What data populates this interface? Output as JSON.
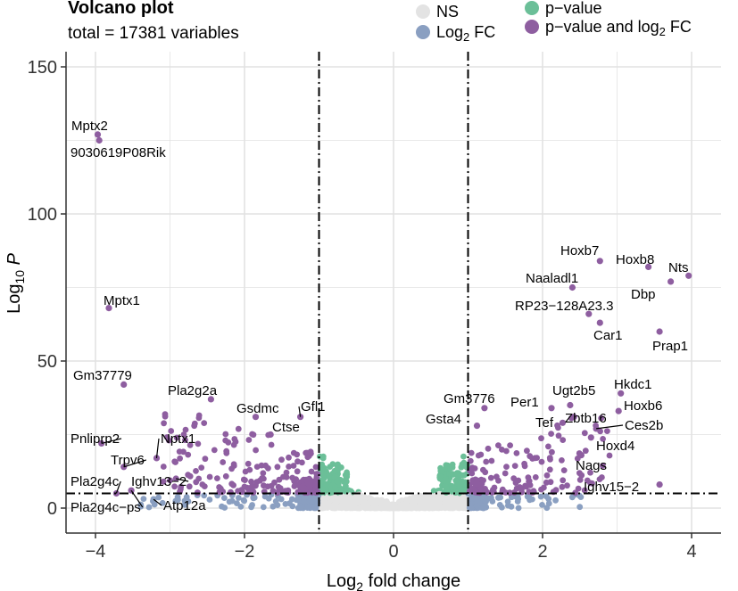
{
  "chart_data": {
    "type": "scatter",
    "title": "Volcano plot",
    "subtitle": "total = 17381 variables",
    "xlabel": {
      "base": "Log",
      "sub": "2",
      "rest": " fold change"
    },
    "ylabel": {
      "base": "Log",
      "sub": "10",
      "rest": " P"
    },
    "xlim": [
      -4.4,
      4.4
    ],
    "ylim": [
      -1.5,
      155
    ],
    "xticks": [
      -4,
      -2,
      0,
      2,
      4
    ],
    "xtick_labels": [
      "−4",
      "−2",
      "0",
      "2",
      "4"
    ],
    "yticks": [
      0,
      50,
      100,
      150
    ],
    "ytick_labels": [
      "0",
      "50",
      "100",
      "150"
    ],
    "fc_cutoff": 1.0,
    "p_cutoff_log10": 5.0,
    "colors": {
      "NS": "#e3e3e3",
      "log2fc": "#8a9fc1",
      "pvalue": "#6bbf98",
      "both": "#8e5ea0",
      "grid": "#e2e2e2",
      "axis": "#333333"
    },
    "legend": [
      {
        "key": "NS",
        "label": "NS"
      },
      {
        "key": "log2fc",
        "label_base": "Log",
        "label_sub": "2",
        "label_rest": " FC"
      },
      {
        "key": "pvalue",
        "label": "p−value"
      },
      {
        "key": "both",
        "label_base": "p−value and log",
        "label_sub": "2",
        "label_rest": " FC"
      }
    ],
    "labeled_points": [
      {
        "gene": "Mptx2",
        "x": -3.97,
        "y": 127
      },
      {
        "gene": "9030619P08Rik",
        "x": -3.95,
        "y": 125
      },
      {
        "gene": "Mptx1",
        "x": -3.82,
        "y": 68
      },
      {
        "gene": "Gm37779",
        "x": -3.62,
        "y": 42
      },
      {
        "gene": "Pla2g2a",
        "x": -2.45,
        "y": 37
      },
      {
        "gene": "Gsdmc",
        "x": -1.85,
        "y": 31
      },
      {
        "gene": "Gfl1",
        "x": -1.25,
        "y": 31
      },
      {
        "gene": "Ctse",
        "x": -1.65,
        "y": 25
      },
      {
        "gene": "Pnliprp2",
        "x": -3.92,
        "y": 22
      },
      {
        "gene": "Nptx1",
        "x": -3.18,
        "y": 17
      },
      {
        "gene": "Trpv6",
        "x": -3.62,
        "y": 14
      },
      {
        "gene": "Pla2g4c",
        "x": -3.72,
        "y": 5
      },
      {
        "gene": "Ighv13−2",
        "x": -2.92,
        "y": 10
      },
      {
        "gene": "Pla2g4c−ps",
        "x": -3.52,
        "y": 6
      },
      {
        "gene": "Atp12a",
        "x": -3.22,
        "y": 3
      },
      {
        "gene": "Hoxb7",
        "x": 2.77,
        "y": 84
      },
      {
        "gene": "Hoxb8",
        "x": 3.42,
        "y": 82
      },
      {
        "gene": "Nts",
        "x": 3.96,
        "y": 79
      },
      {
        "gene": "Dbp",
        "x": 3.72,
        "y": 77
      },
      {
        "gene": "Naaladl1",
        "x": 2.4,
        "y": 75
      },
      {
        "gene": "RP23−128A23.3",
        "x": 2.62,
        "y": 66
      },
      {
        "gene": "Car1",
        "x": 2.77,
        "y": 63
      },
      {
        "gene": "Prap1",
        "x": 3.57,
        "y": 60
      },
      {
        "gene": "Hkdc1",
        "x": 3.05,
        "y": 39
      },
      {
        "gene": "Ugt2b5",
        "x": 2.37,
        "y": 35
      },
      {
        "gene": "Gm3776",
        "x": 1.22,
        "y": 34
      },
      {
        "gene": "Per1",
        "x": 2.12,
        "y": 34
      },
      {
        "gene": "Hoxb6",
        "x": 3.02,
        "y": 33
      },
      {
        "gene": "Zbtb16",
        "x": 2.42,
        "y": 31
      },
      {
        "gene": "Tef",
        "x": 2.27,
        "y": 29
      },
      {
        "gene": "Gsta4",
        "x": 1.12,
        "y": 28
      },
      {
        "gene": "Ces2b",
        "x": 2.72,
        "y": 27
      },
      {
        "gene": "Hoxd4",
        "x": 2.65,
        "y": 24
      },
      {
        "gene": "Nags",
        "x": 2.52,
        "y": 18
      },
      {
        "gene": "Ighv15−2",
        "x": 3.57,
        "y": 8
      }
    ]
  }
}
